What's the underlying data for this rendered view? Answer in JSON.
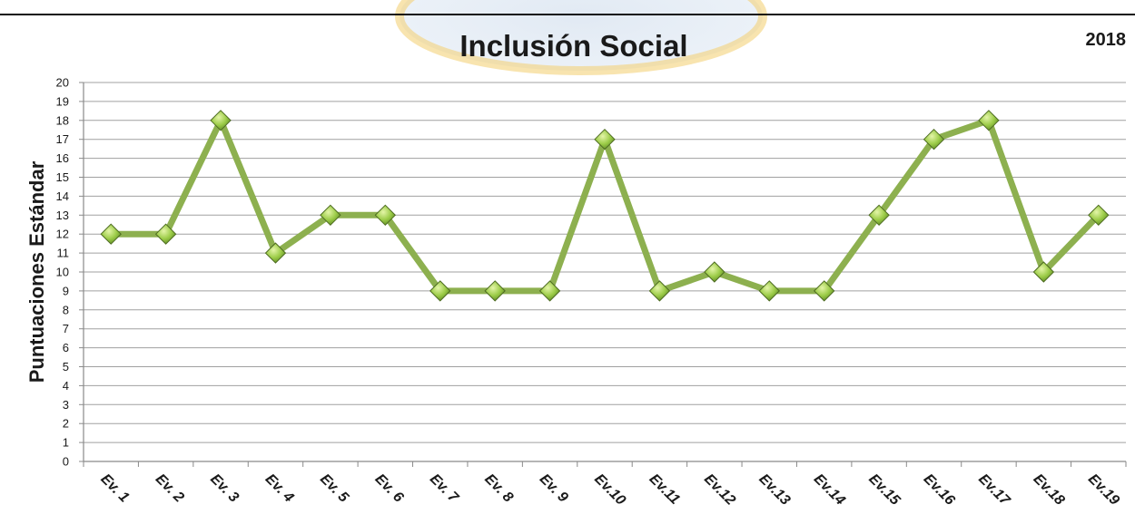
{
  "chart_data": {
    "type": "line",
    "title": "Inclusión Social",
    "year_label": "2018",
    "xlabel": "",
    "ylabel": "Puntuaciones Estándar",
    "ylim": [
      0,
      20
    ],
    "yticks": [
      0,
      1,
      2,
      3,
      4,
      5,
      6,
      7,
      8,
      9,
      10,
      11,
      12,
      13,
      14,
      15,
      16,
      17,
      18,
      19,
      20
    ],
    "categories": [
      "Ev. 1",
      "Ev. 2",
      "Ev. 3",
      "Ev. 4",
      "Ev. 5",
      "Ev. 6",
      "Ev. 7",
      "Ev. 8",
      "Ev. 9",
      "Ev.10",
      "Ev.11",
      "Ev.12",
      "Ev.13",
      "Ev.14",
      "Ev.15",
      "Ev.16",
      "Ev.17",
      "Ev.18",
      "Ev.19"
    ],
    "values": [
      12,
      12,
      18,
      11,
      13,
      13,
      9,
      9,
      9,
      17,
      9,
      10,
      9,
      9,
      13,
      17,
      18,
      10,
      13
    ],
    "grid": true,
    "legend": "none",
    "colors": {
      "line": "#8db04f",
      "marker": "#8cc63f",
      "marker_edge": "#4d6b21",
      "grid": "#a0a0a0",
      "axis": "#8a8a8a"
    }
  }
}
